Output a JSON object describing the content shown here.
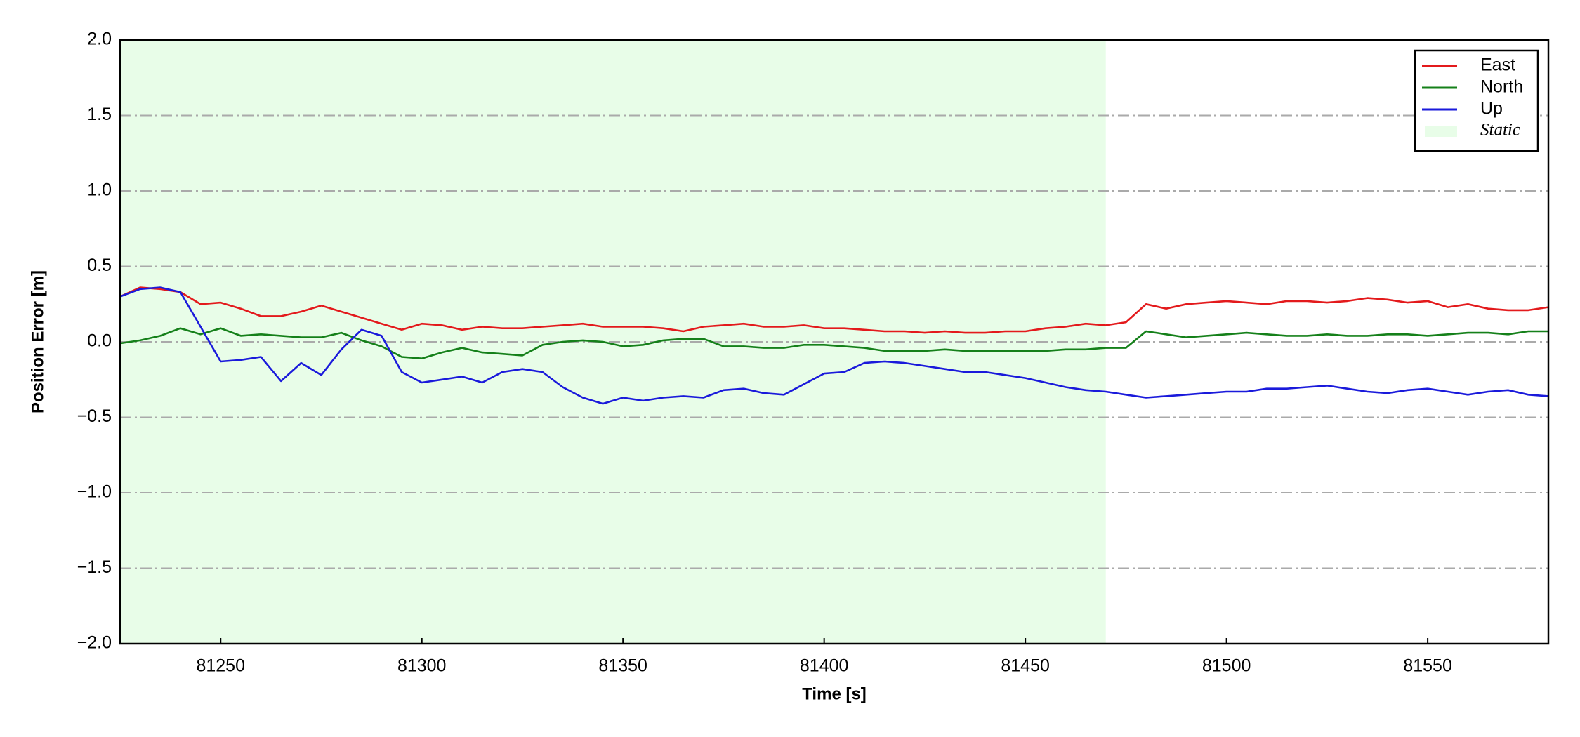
{
  "chart_data": {
    "type": "line",
    "x_label": "Time [s]",
    "y_label": "Position Error [m]",
    "x": [
      81225,
      81230,
      81235,
      81240,
      81245,
      81250,
      81255,
      81260,
      81265,
      81270,
      81275,
      81280,
      81285,
      81290,
      81295,
      81300,
      81305,
      81310,
      81315,
      81320,
      81325,
      81330,
      81335,
      81340,
      81345,
      81350,
      81355,
      81360,
      81365,
      81370,
      81375,
      81380,
      81385,
      81390,
      81395,
      81400,
      81405,
      81410,
      81415,
      81420,
      81425,
      81430,
      81435,
      81440,
      81445,
      81450,
      81455,
      81460,
      81465,
      81470,
      81475,
      81480,
      81485,
      81490,
      81495,
      81500,
      81505,
      81510,
      81515,
      81520,
      81525,
      81530,
      81535,
      81540,
      81545,
      81550,
      81555,
      81560,
      81565,
      81570,
      81575,
      81580
    ],
    "series": [
      {
        "name": "East",
        "color": "#e31a1c",
        "values": [
          0.3,
          0.36,
          0.35,
          0.33,
          0.25,
          0.26,
          0.22,
          0.17,
          0.17,
          0.2,
          0.24,
          0.2,
          0.16,
          0.12,
          0.08,
          0.12,
          0.11,
          0.08,
          0.1,
          0.09,
          0.09,
          0.1,
          0.11,
          0.12,
          0.1,
          0.1,
          0.1,
          0.09,
          0.07,
          0.1,
          0.11,
          0.12,
          0.1,
          0.1,
          0.11,
          0.09,
          0.09,
          0.08,
          0.07,
          0.07,
          0.06,
          0.07,
          0.06,
          0.06,
          0.07,
          0.07,
          0.09,
          0.1,
          0.12,
          0.11,
          0.13,
          0.25,
          0.22,
          0.25,
          0.26,
          0.27,
          0.26,
          0.25,
          0.27,
          0.27,
          0.26,
          0.27,
          0.29,
          0.28,
          0.26,
          0.27,
          0.23,
          0.25,
          0.22,
          0.21,
          0.21,
          0.23
        ]
      },
      {
        "name": "North",
        "color": "#15801a",
        "values": [
          -0.01,
          0.01,
          0.04,
          0.09,
          0.05,
          0.09,
          0.04,
          0.05,
          0.04,
          0.03,
          0.03,
          0.06,
          0.01,
          -0.03,
          -0.1,
          -0.11,
          -0.07,
          -0.04,
          -0.07,
          -0.08,
          -0.09,
          -0.02,
          0.0,
          0.01,
          0.0,
          -0.03,
          -0.02,
          0.01,
          0.02,
          0.02,
          -0.03,
          -0.03,
          -0.04,
          -0.04,
          -0.02,
          -0.02,
          -0.03,
          -0.04,
          -0.06,
          -0.06,
          -0.06,
          -0.05,
          -0.06,
          -0.06,
          -0.06,
          -0.06,
          -0.06,
          -0.05,
          -0.05,
          -0.04,
          -0.04,
          0.07,
          0.05,
          0.03,
          0.04,
          0.05,
          0.06,
          0.05,
          0.04,
          0.04,
          0.05,
          0.04,
          0.04,
          0.05,
          0.05,
          0.04,
          0.05,
          0.06,
          0.06,
          0.05,
          0.07,
          0.07
        ]
      },
      {
        "name": "Up",
        "color": "#1a1adb",
        "values": [
          0.3,
          0.35,
          0.36,
          0.33,
          0.1,
          -0.13,
          -0.12,
          -0.1,
          -0.26,
          -0.14,
          -0.22,
          -0.05,
          0.08,
          0.04,
          -0.2,
          -0.27,
          -0.25,
          -0.23,
          -0.27,
          -0.2,
          -0.18,
          -0.2,
          -0.3,
          -0.37,
          -0.41,
          -0.37,
          -0.39,
          -0.37,
          -0.36,
          -0.37,
          -0.32,
          -0.31,
          -0.34,
          -0.35,
          -0.28,
          -0.21,
          -0.2,
          -0.14,
          -0.13,
          -0.14,
          -0.16,
          -0.18,
          -0.2,
          -0.2,
          -0.22,
          -0.24,
          -0.27,
          -0.3,
          -0.32,
          -0.33,
          -0.35,
          -0.37,
          -0.36,
          -0.35,
          -0.34,
          -0.33,
          -0.33,
          -0.31,
          -0.31,
          -0.3,
          -0.29,
          -0.31,
          -0.33,
          -0.34,
          -0.32,
          -0.31,
          -0.33,
          -0.35,
          -0.33,
          -0.32,
          -0.35,
          -0.36
        ]
      }
    ],
    "static_region": {
      "name": "Static",
      "x0": 81225,
      "x1": 81470,
      "color": "#e8fde8"
    },
    "xlim": [
      81225,
      81580
    ],
    "xticks": [
      81250,
      81300,
      81350,
      81400,
      81450,
      81500,
      81550
    ],
    "ylim": [
      -2,
      2
    ],
    "yticks": [
      {
        "value": -2,
        "label": "−2.0"
      },
      {
        "value": -1.5,
        "label": "−1.5"
      },
      {
        "value": -1,
        "label": "−1.0"
      },
      {
        "value": -0.5,
        "label": "−0.5"
      },
      {
        "value": 0,
        "label": "0.0"
      },
      {
        "value": 0.5,
        "label": "0.5"
      },
      {
        "value": 1,
        "label": "1.0"
      },
      {
        "value": 1.5,
        "label": "1.5"
      },
      {
        "value": 2,
        "label": "2.0"
      }
    ],
    "grid": true,
    "legend_position": "upper-right"
  }
}
